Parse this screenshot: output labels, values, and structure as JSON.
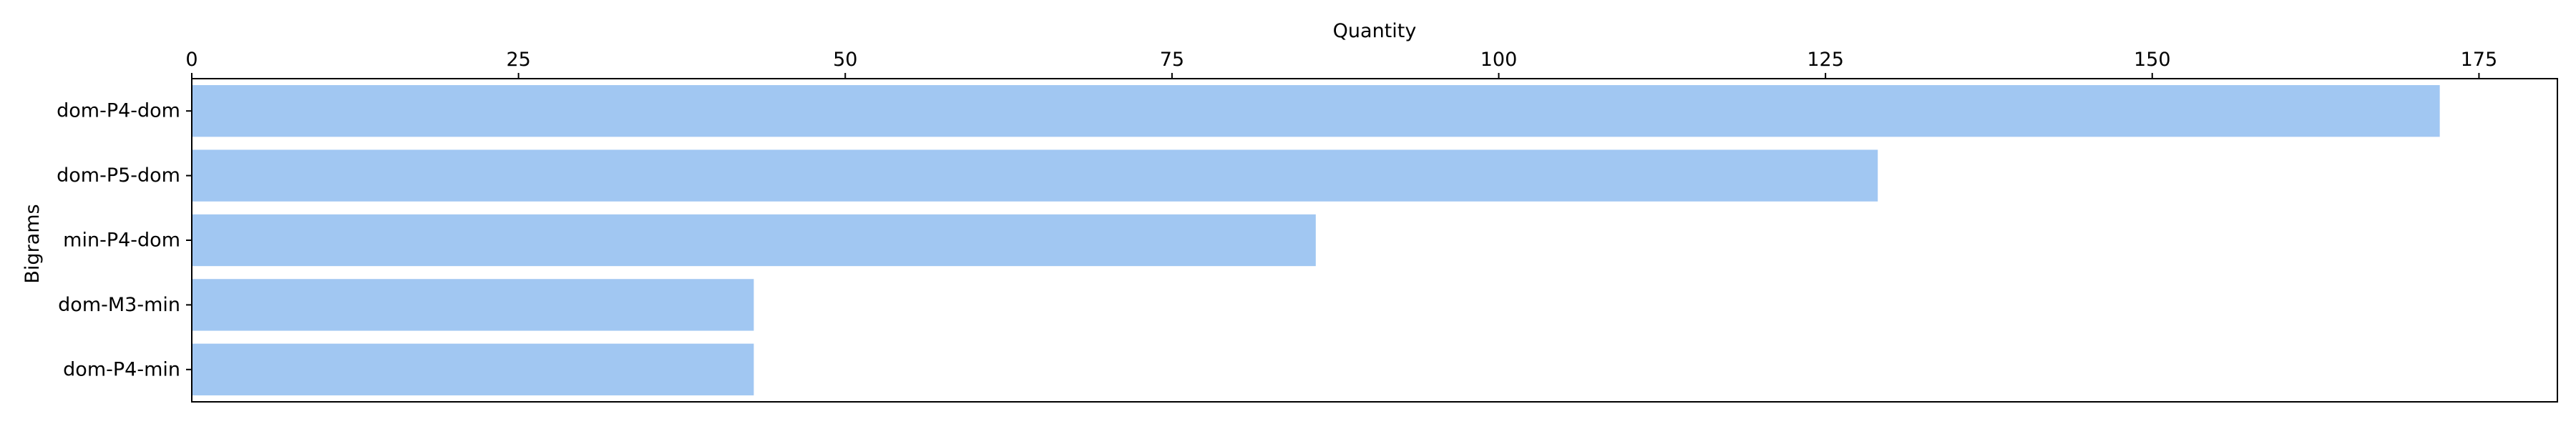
{
  "chart_data": {
    "type": "bar",
    "orientation": "horizontal",
    "title": "",
    "xlabel": "Quantity",
    "ylabel": "Bigrams",
    "x_axis_position": "top",
    "categories": [
      "dom-P4-dom",
      "dom-P5-dom",
      "min-P4-dom",
      "dom-M3-min",
      "dom-P4-min"
    ],
    "values": [
      172,
      129,
      86,
      43,
      43
    ],
    "xlim": [
      0,
      181
    ],
    "xticks": [
      0,
      25,
      50,
      75,
      100,
      125,
      150,
      175
    ],
    "grid": false,
    "bar_color": "#a1c7f2"
  }
}
